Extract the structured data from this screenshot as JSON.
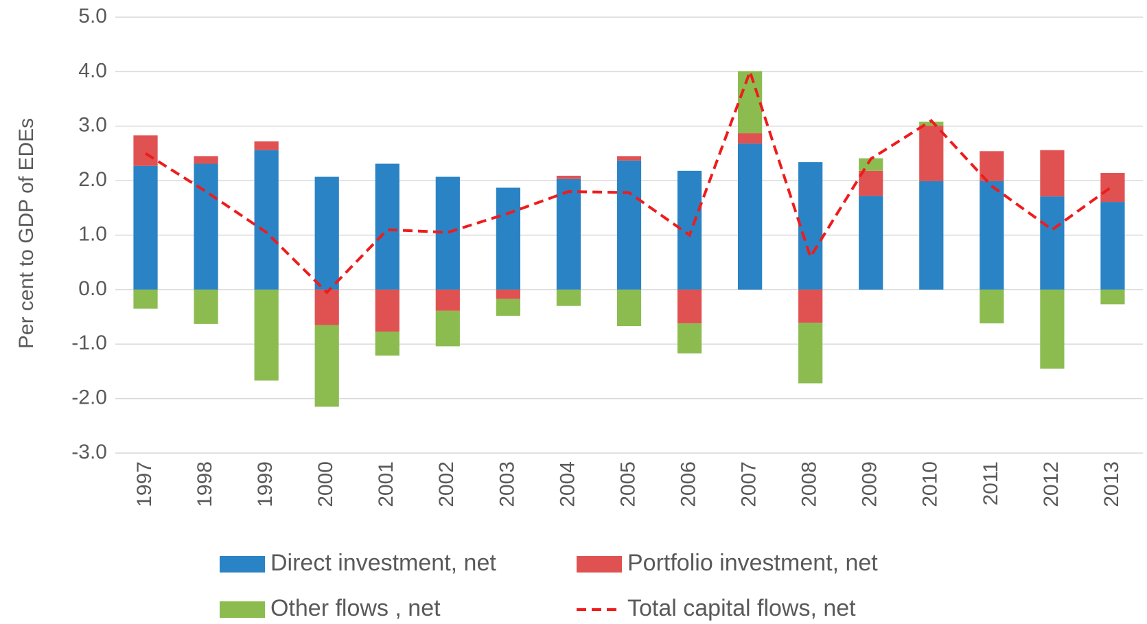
{
  "chart_data": {
    "type": "bar",
    "stacked": true,
    "ylabel": "Per cent to GDP of EDEs",
    "categories": [
      "1997",
      "1998",
      "1999",
      "2000",
      "2001",
      "2002",
      "2003",
      "2004",
      "2005",
      "2006",
      "2007",
      "2008",
      "2009",
      "2010",
      "2011",
      "2012",
      "2013"
    ],
    "series": [
      {
        "name": "Direct investment, net",
        "color": "#2a83c4",
        "values": [
          2.27,
          2.31,
          2.56,
          2.07,
          2.31,
          2.07,
          1.87,
          2.03,
          2.37,
          2.18,
          2.68,
          2.34,
          1.72,
          1.99,
          1.99,
          1.71,
          1.61
        ]
      },
      {
        "name": "Portfolio investment, net",
        "color": "#e05252",
        "values": [
          0.56,
          0.14,
          0.16,
          -0.65,
          -0.77,
          -0.39,
          -0.17,
          0.06,
          0.08,
          -0.62,
          0.19,
          -0.61,
          0.46,
          1.02,
          0.55,
          0.85,
          0.53
        ]
      },
      {
        "name": "Other flows , net",
        "color": "#8cbc50",
        "values": [
          -0.35,
          -0.63,
          -1.67,
          -1.5,
          -0.44,
          -0.65,
          -0.31,
          -0.3,
          -0.67,
          -0.55,
          1.14,
          -1.11,
          0.23,
          0.07,
          -0.62,
          -1.45,
          -0.27
        ]
      },
      {
        "name": "Total capital flows, net",
        "type": "line",
        "dashed": true,
        "color": "#ee1c1c",
        "values": [
          2.5,
          1.8,
          1.05,
          -0.05,
          1.1,
          1.05,
          1.4,
          1.8,
          1.78,
          1.0,
          4.0,
          0.6,
          2.4,
          3.1,
          1.9,
          1.1,
          1.9
        ]
      }
    ],
    "ylim": [
      -3,
      5
    ],
    "yticks": [
      {
        "value": -3,
        "label": "-3.0"
      },
      {
        "value": -2,
        "label": "-2.0"
      },
      {
        "value": -1,
        "label": "-1.0"
      },
      {
        "value": 0,
        "label": "0.0"
      },
      {
        "value": 1,
        "label": "1.0"
      },
      {
        "value": 2,
        "label": "2.0"
      },
      {
        "value": 3,
        "label": "3.0"
      },
      {
        "value": 4,
        "label": "4.0"
      },
      {
        "value": 5,
        "label": "5.0"
      }
    ],
    "grid": true,
    "legend": "bottom"
  }
}
